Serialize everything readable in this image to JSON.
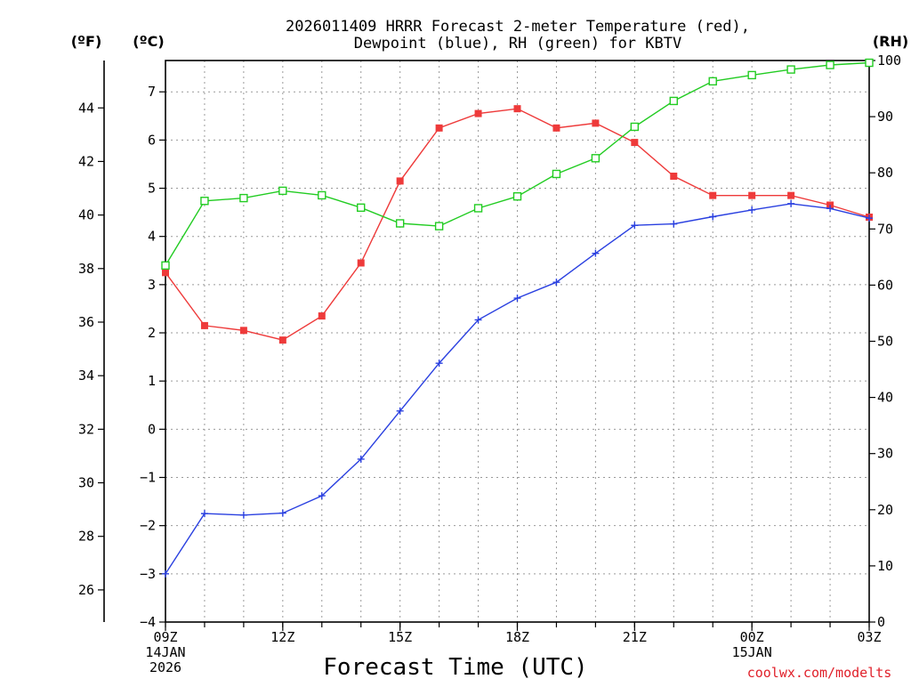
{
  "chart_data": {
    "type": "line",
    "title_lines": [
      "2026011409 HRRR Forecast 2-meter Temperature (red),",
      "Dewpoint (blue), RH (green) for KBTV"
    ],
    "xlabel": "Forecast Time (UTC)",
    "credit": "coolwx.com/modelts",
    "x_hours": [
      0,
      1,
      2,
      3,
      4,
      5,
      6,
      7,
      8,
      9,
      10,
      11,
      12,
      13,
      14,
      15,
      16,
      17,
      18
    ],
    "x_range": [
      0,
      18
    ],
    "x_ticks": [
      {
        "hour": 0,
        "lines": [
          "09Z",
          "14JAN",
          "2026"
        ]
      },
      {
        "hour": 3,
        "lines": [
          "12Z"
        ]
      },
      {
        "hour": 6,
        "lines": [
          "15Z"
        ]
      },
      {
        "hour": 9,
        "lines": [
          "18Z"
        ]
      },
      {
        "hour": 12,
        "lines": [
          "21Z"
        ]
      },
      {
        "hour": 15,
        "lines": [
          "00Z",
          "15JAN"
        ]
      },
      {
        "hour": 18,
        "lines": [
          "03Z"
        ]
      }
    ],
    "celsius_axis": {
      "unit_label": "(ºC)",
      "range": [
        -4,
        7.65
      ],
      "ticks": [
        "7",
        "6",
        "5",
        "4",
        "3",
        "2",
        "1",
        "0",
        "−1",
        "−2",
        "−3",
        "−4"
      ]
    },
    "fahrenheit_axis": {
      "unit_label": "(ºF)",
      "ticks": [
        "44",
        "42",
        "40",
        "38",
        "36",
        "34",
        "32",
        "30",
        "28",
        "26"
      ]
    },
    "rh_axis": {
      "unit_label": "(RH)",
      "range": [
        0,
        100
      ],
      "ticks": [
        "100",
        "90",
        "80",
        "70",
        "60",
        "50",
        "40",
        "30",
        "20",
        "10",
        "0"
      ]
    },
    "series": [
      {
        "name": "Temperature",
        "axis": "celsius",
        "color": "#ee3a3a",
        "marker": "filled-square",
        "values": [
          3.25,
          2.15,
          2.05,
          1.85,
          2.35,
          3.45,
          5.15,
          6.25,
          6.55,
          6.65,
          6.25,
          6.35,
          5.95,
          5.25,
          4.85,
          4.85,
          4.85,
          4.65,
          4.4
        ]
      },
      {
        "name": "Dewpoint",
        "axis": "celsius",
        "color": "#2a40e0",
        "marker": "plus",
        "values": [
          -3.0,
          -1.75,
          -1.78,
          -1.74,
          -1.38,
          -0.62,
          0.38,
          1.37,
          2.27,
          2.72,
          3.05,
          3.65,
          4.23,
          4.26,
          4.41,
          4.55,
          4.68,
          4.58,
          4.38
        ]
      },
      {
        "name": "RH",
        "axis": "rh",
        "color": "#22cc22",
        "marker": "open-square",
        "values": [
          63.5,
          75.0,
          75.5,
          76.8,
          76.0,
          73.8,
          71.0,
          70.5,
          73.7,
          75.8,
          79.8,
          82.6,
          88.2,
          92.8,
          96.3,
          97.4,
          98.4,
          99.2,
          99.6
        ]
      }
    ]
  }
}
